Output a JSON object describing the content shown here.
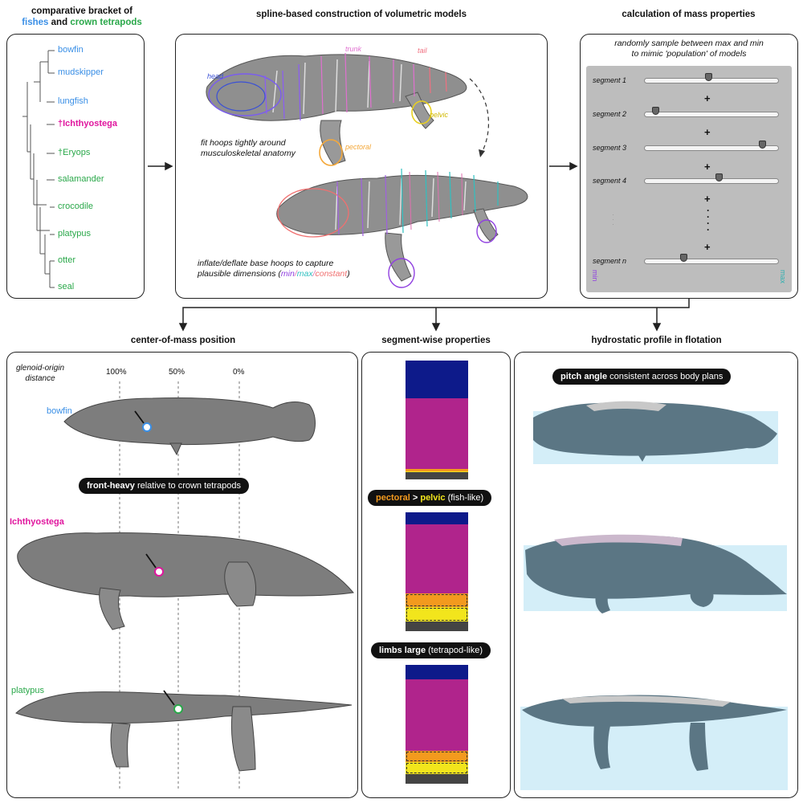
{
  "panel1": {
    "title_line1": "comparative bracket of",
    "title_fishes": "fishes",
    "title_and": "and",
    "title_tetrapods": "crown tetrapods",
    "taxa": [
      {
        "name": "bowfin",
        "color": "#3a8fe6"
      },
      {
        "name": "mudskipper",
        "color": "#3a8fe6"
      },
      {
        "name": "lungfish",
        "color": "#3a8fe6"
      },
      {
        "name": "†Ichthyostega",
        "color": "#e0169e"
      },
      {
        "name": "†Eryops",
        "color": "#2aa84a"
      },
      {
        "name": "salamander",
        "color": "#2aa84a"
      },
      {
        "name": "crocodile",
        "color": "#2aa84a"
      },
      {
        "name": "platypus",
        "color": "#2aa84a"
      },
      {
        "name": "otter",
        "color": "#2aa84a"
      },
      {
        "name": "seal",
        "color": "#2aa84a"
      }
    ]
  },
  "panel2": {
    "title": "spline-based construction of volumetric models",
    "label_head": "head",
    "label_trunk": "trunk",
    "label_tail": "tail",
    "label_pectoral": "pectoral",
    "label_pelvic": "pelvic",
    "caption1_line1": "fit hoops tightly around",
    "caption1_line2": "musculoskeletal anatomy",
    "caption2_line1": "inflate/deflate base hoops to capture",
    "caption2_line2_a": "plausible dimensions (",
    "caption2_min": "min",
    "caption2_max": "max",
    "caption2_const": "constant",
    "caption2_close": ")"
  },
  "panel3": {
    "title": "calculation of mass properties",
    "sub_line1": "randomly sample between max and min",
    "sub_line2": "to mimic 'population' of models",
    "segments": [
      {
        "label": "segment 1",
        "value": 0.48
      },
      {
        "label": "segment 2",
        "value": 0.06
      },
      {
        "label": "segment 3",
        "value": 0.9
      },
      {
        "label": "segment 4",
        "value": 0.56
      },
      {
        "label": "segment n",
        "value": 0.28
      }
    ],
    "min_label": "min",
    "max_label": "max"
  },
  "panel4": {
    "title": "center-of-mass position",
    "axis_title_line1": "glenoid-origin",
    "axis_title_line2": "distance",
    "ticks": [
      "100%",
      "50%",
      "0%"
    ],
    "taxa": [
      {
        "name": "bowfin",
        "color": "#3a8fe6"
      },
      {
        "name": "Ichthyostega",
        "color": "#e0169e"
      },
      {
        "name": "platypus",
        "color": "#2aa84a"
      }
    ],
    "pill_bold": "front-heavy",
    "pill_rest": " relative to crown tetrapods"
  },
  "panel5": {
    "title": "segment-wise properties",
    "pill1_pectoral": "pectoral",
    "pill1_gt": " > ",
    "pill1_pelvic": "pelvic",
    "pill1_rest": " (fish-like)",
    "pill2_bold": "limbs large",
    "pill2_rest": " (tetrapod-like)",
    "colors": {
      "head": "#0d1a8a",
      "trunk": "#b0248c",
      "pectoral": "#f39a1e",
      "pelvic": "#f2e51c",
      "tail": "#444444"
    },
    "bars": [
      {
        "head": 0.32,
        "trunk": 0.59,
        "pectoral": 0.02,
        "pelvic": 0.01,
        "tail": 0.06
      },
      {
        "head": 0.1,
        "trunk": 0.58,
        "pectoral": 0.12,
        "pelvic": 0.12,
        "tail": 0.08
      },
      {
        "head": 0.12,
        "trunk": 0.6,
        "pectoral": 0.1,
        "pelvic": 0.1,
        "tail": 0.08
      }
    ]
  },
  "panel6": {
    "title": "hydrostatic profile in flotation",
    "pill_bold": "pitch angle",
    "pill_rest": " consistent across body plans"
  }
}
